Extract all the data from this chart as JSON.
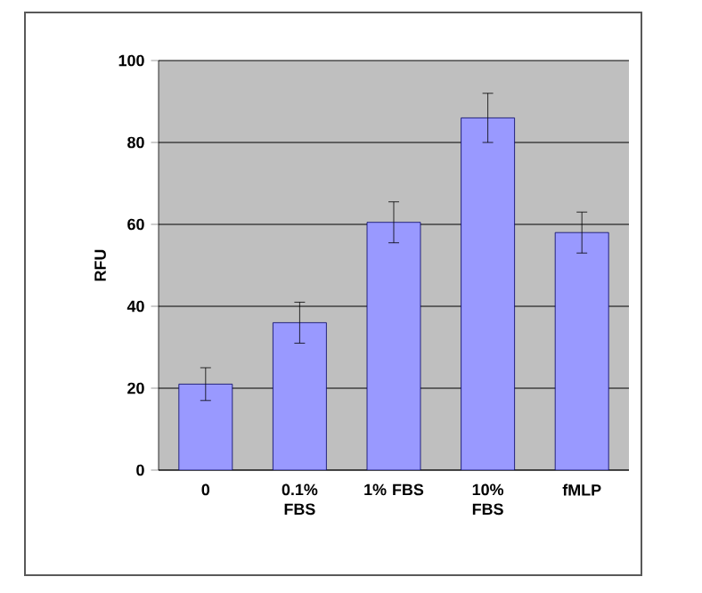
{
  "chart_data": {
    "type": "bar",
    "ylabel": "RFU",
    "categories": [
      "0",
      "0.1% FBS",
      "1% FBS",
      "10% FBS",
      "fMLP"
    ],
    "values": [
      21,
      36,
      60.5,
      86,
      58
    ],
    "errors": [
      4,
      5,
      5,
      6,
      5
    ],
    "color": "#9999ff",
    "ylim": [
      0,
      100
    ],
    "yticks": [
      0,
      20,
      40,
      60,
      80,
      100
    ],
    "grid": "y"
  }
}
